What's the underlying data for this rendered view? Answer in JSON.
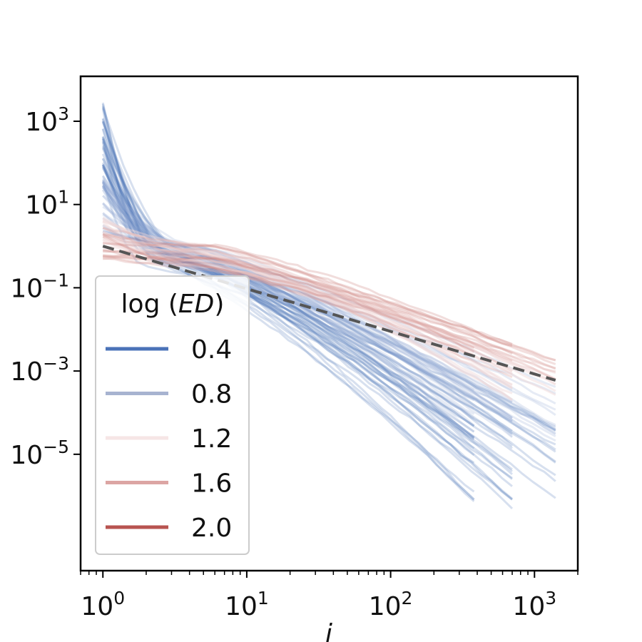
{
  "chart_data": {
    "type": "line",
    "title": "",
    "xlabel": "i",
    "ylabel": "",
    "xscale": "log",
    "yscale": "log",
    "xlim": [
      0.7,
      2000
    ],
    "ylim": [
      1.6e-08,
      12000
    ],
    "grid": false,
    "x_ticks": [
      {
        "value": 1,
        "base": "10",
        "exp": "0"
      },
      {
        "value": 10,
        "base": "10",
        "exp": "1"
      },
      {
        "value": 100,
        "base": "10",
        "exp": "2"
      },
      {
        "value": 1000,
        "base": "10",
        "exp": "3"
      }
    ],
    "y_ticks": [
      {
        "value": 1000,
        "base": "10",
        "exp": "3"
      },
      {
        "value": 10,
        "base": "10",
        "exp": "1"
      },
      {
        "value": 0.1,
        "base": "10",
        "exp": "−1"
      },
      {
        "value": 0.001,
        "base": "10",
        "exp": "−3"
      },
      {
        "value": 1e-05,
        "base": "10",
        "exp": "−5"
      }
    ],
    "legend": {
      "title_plain": "log",
      "title_italic": "ED",
      "placement": "lower-left",
      "entries": [
        {
          "label": "0.4",
          "color": "#4a72b8"
        },
        {
          "label": "0.8",
          "color": "#a7b3d0"
        },
        {
          "label": "1.2",
          "color": "#f6e6e6"
        },
        {
          "label": "1.6",
          "color": "#dca5a3"
        },
        {
          "label": "2.0",
          "color": "#b85450"
        }
      ]
    },
    "reference_line": {
      "style": "dashed",
      "color": "#555555",
      "x": [
        1,
        1400
      ],
      "y": [
        1.0,
        0.0006
      ]
    },
    "series_groups": [
      {
        "ed": "0.4",
        "color": "#4a72b8",
        "opacity": 0.22,
        "count": 40,
        "y_start_range": [
          20,
          6000
        ],
        "x_end_options": [
          380,
          700,
          1400
        ],
        "y_end_range": [
          4e-07,
          5e-05
        ],
        "knee_x_range": [
          1.8,
          3.5
        ]
      },
      {
        "ed": "0.8",
        "color": "#8fa6d0",
        "opacity": 0.22,
        "count": 30,
        "y_start_range": [
          2,
          60
        ],
        "x_end_options": [
          380,
          700,
          1400
        ],
        "y_end_range": [
          2e-05,
          0.0005
        ],
        "knee_x_range": [
          2.5,
          5
        ]
      },
      {
        "ed": "1.2",
        "color": "#efd6d6",
        "opacity": 0.45,
        "count": 16,
        "y_start_range": [
          0.8,
          5
        ],
        "x_end_options": [
          700,
          1400
        ],
        "y_end_range": [
          0.0002,
          0.001
        ],
        "knee_x_range": [
          3,
          6
        ]
      },
      {
        "ed": "1.6",
        "color": "#dca5a3",
        "opacity": 0.35,
        "count": 10,
        "y_start_range": [
          0.5,
          3
        ],
        "x_end_options": [
          700,
          1400
        ],
        "y_end_range": [
          0.0005,
          0.002
        ],
        "knee_x_range": [
          3,
          6
        ]
      },
      {
        "ed": "2.0",
        "color": "#c87874",
        "opacity": 0.25,
        "count": 6,
        "y_start_range": [
          0.5,
          2
        ],
        "x_end_options": [
          380,
          700
        ],
        "y_end_range": [
          0.002,
          0.005
        ],
        "knee_x_range": [
          3,
          6
        ]
      }
    ]
  }
}
